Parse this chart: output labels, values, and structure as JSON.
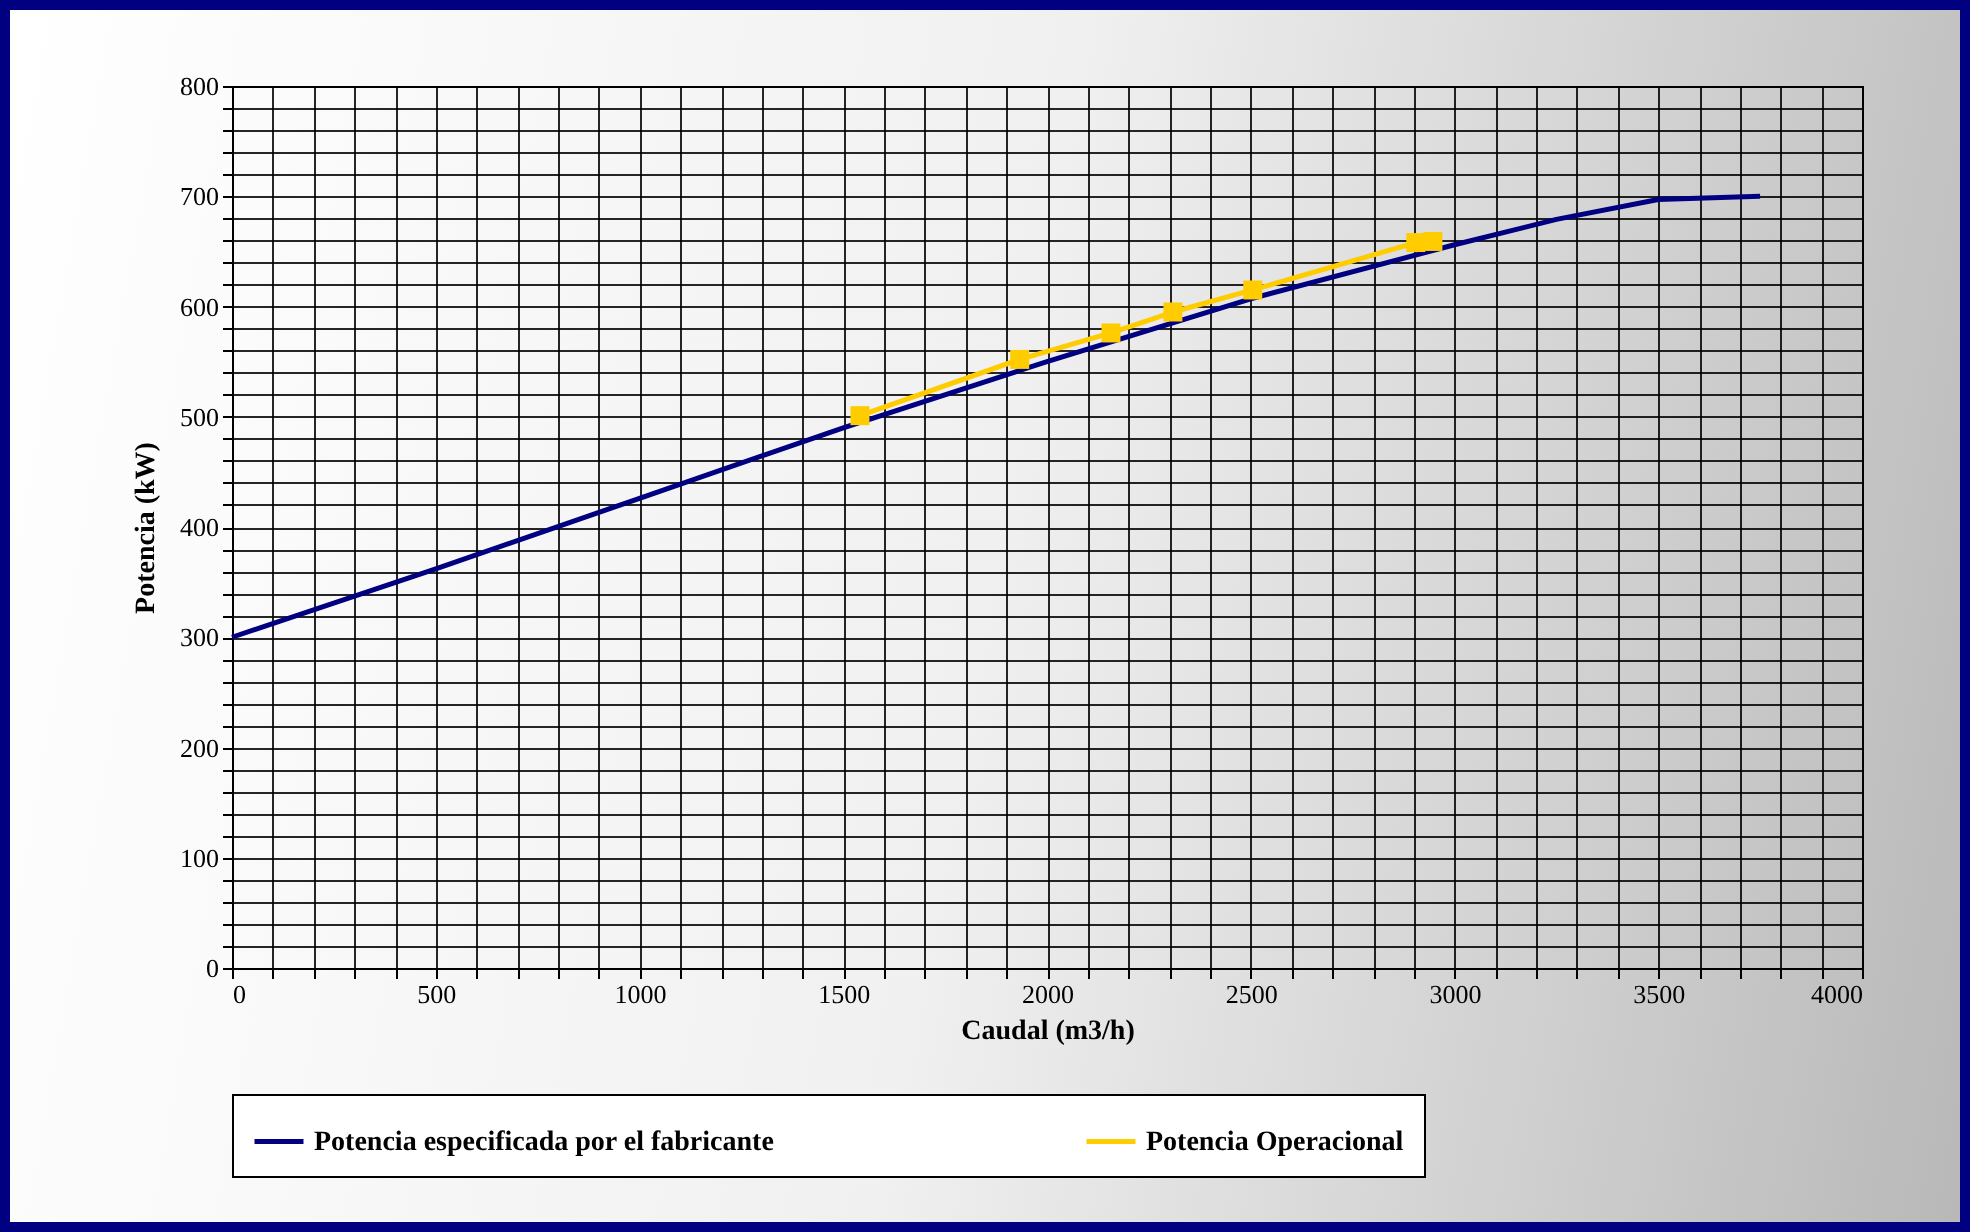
{
  "chart_data": {
    "type": "line",
    "xlabel": "Caudal (m3/h)",
    "ylabel": "Potencia (kW)",
    "xlim": [
      0,
      4000
    ],
    "ylim": [
      0,
      800
    ],
    "xticks": [
      0,
      {
        "value": 100,
        "label": null
      },
      {
        "value": 200,
        "label": null
      },
      {
        "value": 300,
        "label": null
      },
      {
        "value": 400,
        "label": null
      },
      500,
      {
        "value": 600,
        "label": null
      },
      {
        "value": 700,
        "label": null
      },
      {
        "value": 800,
        "label": null
      },
      {
        "value": 900,
        "label": null
      },
      1000,
      {
        "value": 1100,
        "label": null
      },
      {
        "value": 1200,
        "label": null
      },
      {
        "value": 1300,
        "label": null
      },
      {
        "value": 1400,
        "label": null
      },
      1500,
      {
        "value": 1600,
        "label": null
      },
      {
        "value": 1700,
        "label": null
      },
      {
        "value": 1800,
        "label": null
      },
      {
        "value": 1900,
        "label": null
      },
      2000,
      {
        "value": 2100,
        "label": null
      },
      {
        "value": 2200,
        "label": null
      },
      {
        "value": 2300,
        "label": null
      },
      {
        "value": 2400,
        "label": null
      },
      2500,
      {
        "value": 2600,
        "label": null
      },
      {
        "value": 2700,
        "label": null
      },
      {
        "value": 2800,
        "label": null
      },
      {
        "value": 2900,
        "label": null
      },
      3000,
      {
        "value": 3100,
        "label": null
      },
      {
        "value": 3200,
        "label": null
      },
      {
        "value": 3300,
        "label": null
      },
      {
        "value": 3400,
        "label": null
      },
      3500,
      {
        "value": 3600,
        "label": null
      },
      {
        "value": 3700,
        "label": null
      },
      {
        "value": 3800,
        "label": null
      },
      {
        "value": 3900,
        "label": null
      },
      4000
    ],
    "yticks": [
      0,
      {
        "value": 20,
        "label": null
      },
      {
        "value": 40,
        "label": null
      },
      {
        "value": 60,
        "label": null
      },
      {
        "value": 80,
        "label": null
      },
      100,
      {
        "value": 120,
        "label": null
      },
      {
        "value": 140,
        "label": null
      },
      {
        "value": 160,
        "label": null
      },
      {
        "value": 180,
        "label": null
      },
      200,
      {
        "value": 220,
        "label": null
      },
      {
        "value": 240,
        "label": null
      },
      {
        "value": 260,
        "label": null
      },
      {
        "value": 280,
        "label": null
      },
      300,
      {
        "value": 320,
        "label": null
      },
      {
        "value": 340,
        "label": null
      },
      {
        "value": 360,
        "label": null
      },
      {
        "value": 380,
        "label": null
      },
      400,
      {
        "value": 420,
        "label": null
      },
      {
        "value": 440,
        "label": null
      },
      {
        "value": 460,
        "label": null
      },
      {
        "value": 480,
        "label": null
      },
      500,
      {
        "value": 520,
        "label": null
      },
      {
        "value": 540,
        "label": null
      },
      {
        "value": 560,
        "label": null
      },
      {
        "value": 580,
        "label": null
      },
      600,
      {
        "value": 620,
        "label": null
      },
      {
        "value": 640,
        "label": null
      },
      {
        "value": 660,
        "label": null
      },
      {
        "value": 680,
        "label": null
      },
      700,
      {
        "value": 720,
        "label": null
      },
      {
        "value": 740,
        "label": null
      },
      {
        "value": 760,
        "label": null
      },
      {
        "value": 780,
        "label": null
      },
      800
    ],
    "grid": true,
    "legend": "bottom",
    "series": [
      {
        "name": "Potencia especificada por el fabricante",
        "color": "#000080",
        "marker": "none",
        "x": [
          0,
          500,
          1000,
          1500,
          2000,
          2500,
          3000,
          3250,
          3500,
          3750
        ],
        "values": [
          300,
          362,
          426,
          490,
          550,
          607,
          656,
          679,
          697,
          700
        ]
      },
      {
        "name": "Potencia Operacional",
        "color": "#ffcc00",
        "marker": "square",
        "x": [
          1541,
          1933,
          2157,
          2309,
          2505,
          2905,
          2947
        ],
        "values": [
          501,
          552,
          576,
          595,
          615,
          658,
          659
        ]
      }
    ]
  }
}
